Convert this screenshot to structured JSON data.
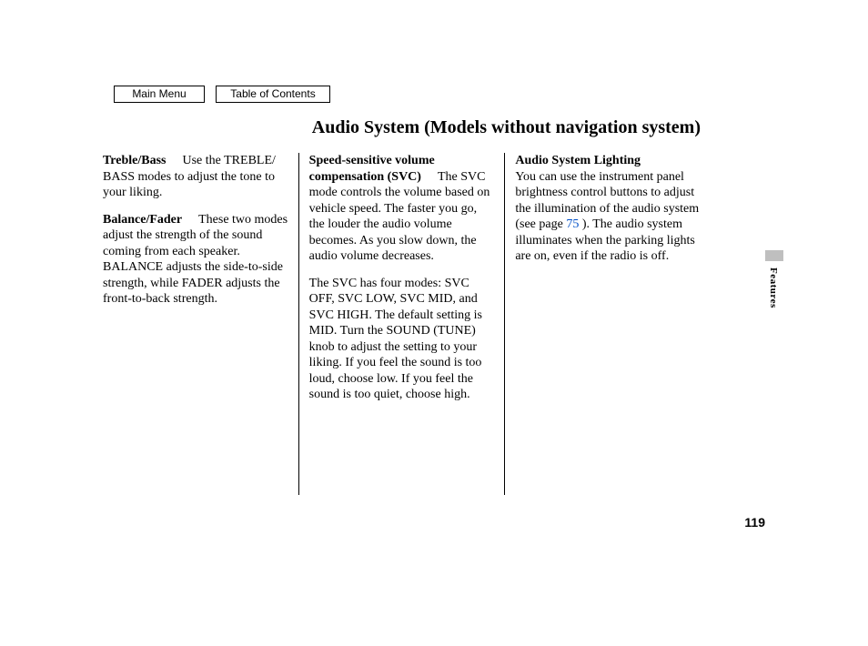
{
  "nav": {
    "main_menu": "Main Menu",
    "toc": "Table of Contents"
  },
  "title": "Audio System (Models without navigation system)",
  "col1": {
    "p1": {
      "hdr": "Treble/Bass",
      "body": "Use the TREBLE/ BASS modes to adjust the tone to your liking."
    },
    "p2": {
      "hdr": "Balance/Fader",
      "body": "These two modes adjust the strength of the sound coming from each speaker. BALANCE adjusts the side-to-side strength, while FADER adjusts the front-to-back strength."
    }
  },
  "col2": {
    "p1": {
      "hdr": "Speed-sensitive volume compensation (SVC)",
      "body": "The SVC mode controls the volume based on vehicle speed. The faster you go, the louder the audio volume becomes. As you slow down, the audio volume decreases."
    },
    "p2": {
      "body": "The SVC has four modes: SVC OFF, SVC LOW, SVC MID, and SVC HIGH. The default setting is MID. Turn the SOUND (TUNE) knob to adjust the setting to your liking. If you feel the sound is too loud, choose low. If you feel the sound is too quiet, choose high."
    }
  },
  "col3": {
    "p1": {
      "hdr": "Audio System Lighting",
      "pre": "You can use the instrument panel brightness control buttons to adjust the illumination of the audio system (see page ",
      "link": "75",
      "post": " ). The audio system illuminates when the parking lights are on, even if the radio is off."
    }
  },
  "page_number": "119",
  "section_tab": "Features",
  "colors": {
    "link": "#0050c8",
    "tab_bg": "#bfbfbf",
    "text": "#000000",
    "page_bg": "#ffffff"
  },
  "typography": {
    "body_family": "Times New Roman",
    "body_size_pt": 10.5,
    "title_size_pt": 15,
    "nav_family": "Arial",
    "nav_size_pt": 9
  }
}
